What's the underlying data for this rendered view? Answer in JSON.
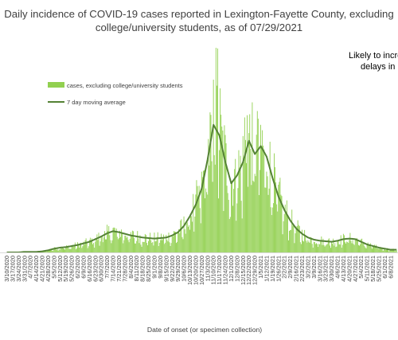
{
  "chart_data": {
    "type": "bar",
    "title_line1": "Daily incidence of COVID-19 cases reported in Lexington-Fayette County, excluding",
    "title_line2": "college/university students, as of 07/29/2021",
    "annotation_line1": "Likely to incre",
    "annotation_line2": "delays in",
    "xlabel": "Date of onset (or specimen collection)",
    "ylabel": "",
    "series": [
      {
        "name": "cases, excluding college/university students",
        "kind": "bar",
        "color": "#92d050"
      },
      {
        "name": "7 day moving average",
        "kind": "line",
        "color": "#548235"
      }
    ],
    "x_ticks": [
      "3/10/2020",
      "3/17/2020",
      "3/24/2020",
      "3/31/2020",
      "4/7/2020",
      "4/14/2020",
      "4/21/2020",
      "4/28/2020",
      "5/5/2020",
      "5/12/2020",
      "5/19/2020",
      "5/26/2020",
      "6/2/2020",
      "6/9/2020",
      "6/16/2020",
      "6/23/2020",
      "6/30/2020",
      "7/7/2020",
      "7/14/2020",
      "7/21/2020",
      "7/28/2020",
      "8/4/2020",
      "8/11/2020",
      "8/18/2020",
      "8/25/2020",
      "9/1/2020",
      "9/8/2020",
      "9/15/2020",
      "9/22/2020",
      "9/29/2020",
      "10/6/2020",
      "10/13/2020",
      "10/20/2020",
      "10/27/2020",
      "11/3/2020",
      "11/10/2020",
      "11/17/2020",
      "11/24/2020",
      "12/1/2020",
      "12/8/2020",
      "12/15/2020",
      "12/22/2020",
      "12/29/2020",
      "1/5/2021",
      "1/12/2021",
      "1/19/2021",
      "1/26/2021",
      "2/2/2021",
      "2/9/2021",
      "2/16/2021",
      "2/23/2021",
      "3/2/2021",
      "3/9/2021",
      "3/16/2021",
      "3/23/2021",
      "3/30/2021",
      "4/6/2021",
      "4/13/2021",
      "4/20/2021",
      "4/27/2021",
      "5/4/2021",
      "5/11/2021",
      "5/18/2021",
      "5/25/2021",
      "6/1/2021",
      "6/8/2021"
    ],
    "weekly_moving_average": [
      0,
      0,
      0,
      1,
      1,
      1,
      2,
      4,
      7,
      9,
      10,
      12,
      14,
      17,
      20,
      25,
      30,
      36,
      40,
      38,
      35,
      32,
      30,
      28,
      27,
      26,
      27,
      28,
      32,
      38,
      50,
      68,
      90,
      120,
      175,
      240,
      220,
      170,
      130,
      145,
      170,
      210,
      185,
      200,
      180,
      140,
      105,
      80,
      60,
      45,
      35,
      28,
      24,
      22,
      21,
      20,
      22,
      25,
      26,
      25,
      20,
      15,
      12,
      9,
      7,
      5
    ],
    "ylim": [
      0,
      385
    ],
    "grid": false,
    "legend_position": "upper-left"
  }
}
